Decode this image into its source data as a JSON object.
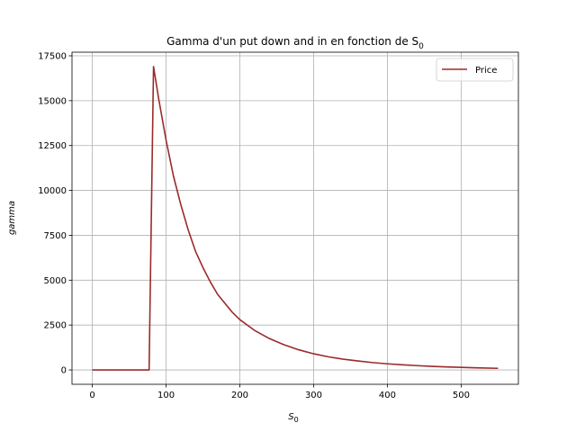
{
  "chart_data": {
    "type": "line",
    "title": "Gamma d'un put down and in en fonction de S",
    "title_sub": "0",
    "xlabel": "S",
    "xlabel_sub": "0",
    "ylabel": "gamma",
    "xlim": [
      -27.5,
      577.5
    ],
    "ylim": [
      -800,
      17700
    ],
    "xticks": [
      0,
      100,
      200,
      300,
      400,
      500
    ],
    "yticks": [
      0,
      2500,
      5000,
      7500,
      10000,
      12500,
      15000,
      17500
    ],
    "grid": true,
    "legend_position": "top-right",
    "series": [
      {
        "name": "Price",
        "color": "#9b2a2a",
        "x": [
          0,
          20,
          40,
          60,
          77,
          83,
          90,
          100,
          110,
          120,
          130,
          140,
          150,
          160,
          170,
          180,
          190,
          200,
          220,
          240,
          260,
          280,
          300,
          320,
          340,
          360,
          380,
          400,
          420,
          440,
          460,
          480,
          500,
          520,
          550
        ],
        "y": [
          0,
          0,
          0,
          0,
          0,
          16900,
          15100,
          12800,
          10800,
          9200,
          7800,
          6600,
          5700,
          4900,
          4200,
          3700,
          3200,
          2800,
          2200,
          1750,
          1400,
          1120,
          900,
          730,
          600,
          500,
          410,
          340,
          285,
          240,
          200,
          170,
          145,
          120,
          90
        ]
      }
    ]
  }
}
